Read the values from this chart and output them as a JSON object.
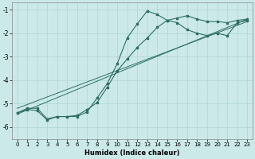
{
  "xlabel": "Humidex (Indice chaleur)",
  "bg_color": "#cce9e9",
  "grid_color": "#add4d4",
  "line_color": "#2d6e63",
  "xlim": [
    -0.5,
    23.5
  ],
  "ylim": [
    -6.5,
    -0.7
  ],
  "yticks": [
    -6,
    -5,
    -4,
    -3,
    -2,
    -1
  ],
  "xticks": [
    0,
    1,
    2,
    3,
    4,
    5,
    6,
    7,
    8,
    9,
    10,
    11,
    12,
    13,
    14,
    15,
    16,
    17,
    18,
    19,
    20,
    21,
    22,
    23
  ],
  "line1_x": [
    0,
    1,
    2,
    3,
    4,
    5,
    6,
    7,
    8,
    9,
    10,
    11,
    12,
    13,
    14,
    15,
    16,
    17,
    18,
    19,
    20,
    21,
    22,
    23
  ],
  "line1_y": [
    -5.4,
    -5.25,
    -5.3,
    -5.7,
    -5.55,
    -5.55,
    -5.55,
    -5.35,
    -4.75,
    -4.15,
    -3.3,
    -2.2,
    -1.6,
    -1.05,
    -1.2,
    -1.45,
    -1.55,
    -1.85,
    -2.0,
    -2.1,
    -2.0,
    -2.1,
    -1.55,
    -1.45
  ],
  "line2_x": [
    0,
    1,
    2,
    3,
    4,
    5,
    6,
    7,
    8,
    9,
    10,
    11,
    12,
    13,
    14,
    15,
    16,
    17,
    18,
    19,
    20,
    21,
    22,
    23
  ],
  "line2_y": [
    -5.4,
    -5.2,
    -5.2,
    -5.65,
    -5.55,
    -5.55,
    -5.5,
    -5.25,
    -4.95,
    -4.3,
    -3.6,
    -3.1,
    -2.6,
    -2.2,
    -1.75,
    -1.45,
    -1.35,
    -1.25,
    -1.4,
    -1.5,
    -1.5,
    -1.55,
    -1.45,
    -1.4
  ],
  "line3_x": [
    0,
    23
  ],
  "line3_y": [
    -5.45,
    -1.4
  ],
  "line4_x": [
    0,
    23
  ],
  "line4_y": [
    -5.2,
    -1.5
  ]
}
